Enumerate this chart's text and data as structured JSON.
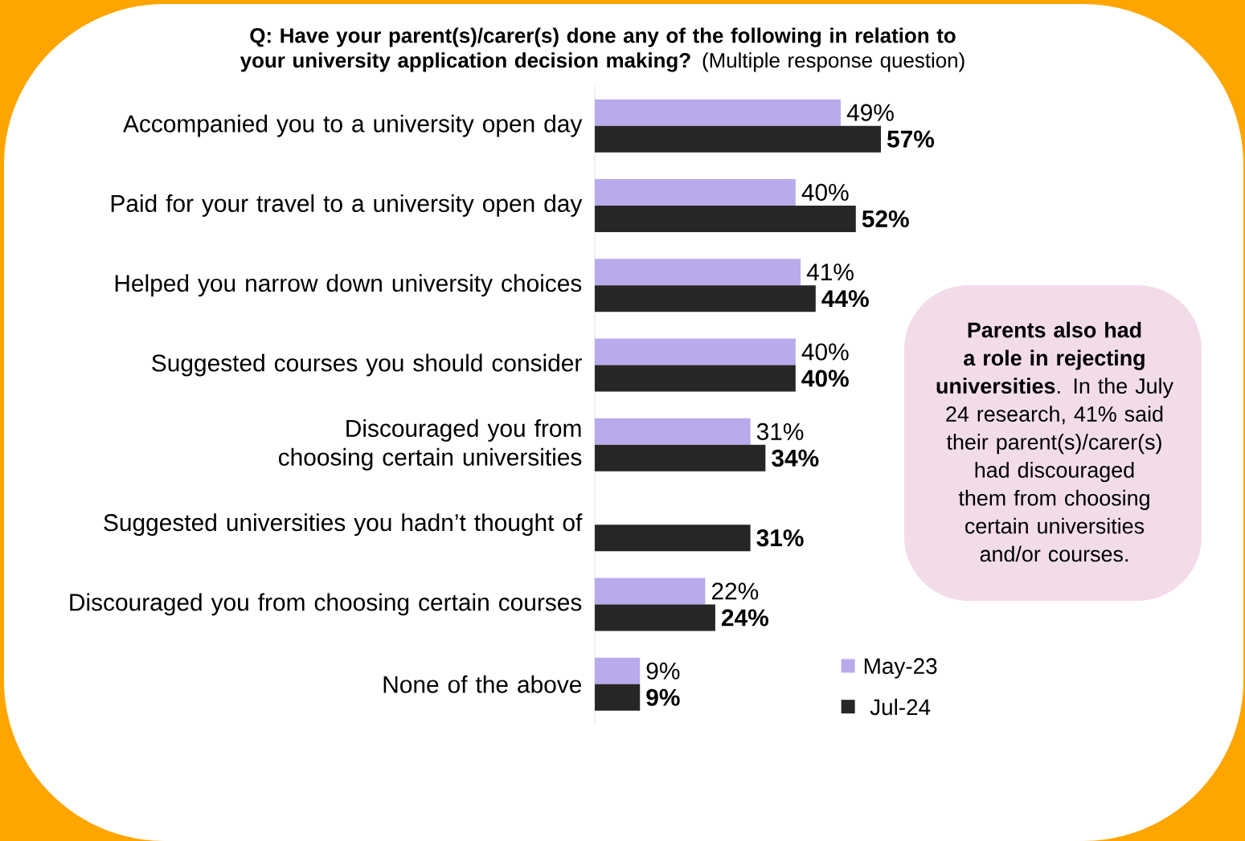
{
  "chart_data": {
    "type": "bar",
    "orientation": "horizontal",
    "title": "**Q: Have your parent(s)/carer(s) done any of the following in relation to your university application decision making?** (Multiple response question)",
    "categories": [
      "Accompanied you to a university open day",
      "Paid for your travel to a university open day",
      "Helped you narrow down university choices",
      "Suggested courses you should consider",
      "Discouraged you from choosing certain universities",
      "Suggested universities you hadn’t thought of",
      "Discouraged you from choosing certain courses",
      "None of the above"
    ],
    "series": [
      {
        "name": "May-23",
        "color": "#b8aaeb",
        "values": [
          49,
          40,
          41,
          40,
          31,
          null,
          22,
          9
        ],
        "value_labels": [
          "49%",
          "40%",
          "41%",
          "40%",
          "31%",
          null,
          "22%",
          "9%"
        ]
      },
      {
        "name": "Jul-24",
        "color": "#262626",
        "values": [
          57,
          52,
          44,
          40,
          34,
          31,
          24,
          9
        ],
        "value_labels": [
          "57%",
          "52%",
          "44%",
          "40%",
          "34%",
          "31%",
          "24%",
          "9%"
        ]
      }
    ],
    "legend": "bottom right",
    "annotations": [
      "**Parents also had a role in rejecting universities**. In the July 24 research, 41% said their parent(s)/carer(s) had discouraged them from choosing certain universities and/or courses."
    ]
  }
}
